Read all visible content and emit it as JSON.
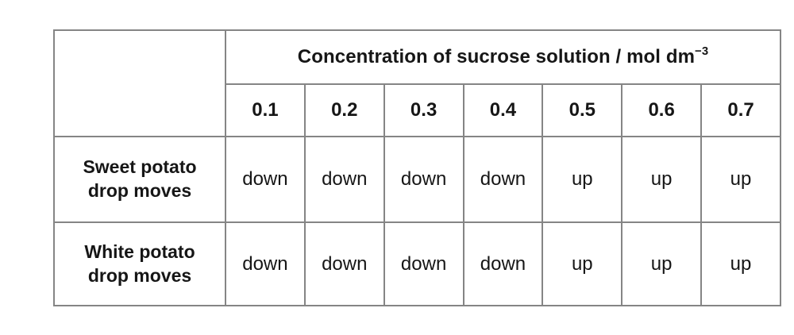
{
  "chart_data": {
    "type": "table",
    "title": "Concentration of sucrose solution / mol dm⁻³",
    "header_main": "Concentration of sucrose solution / mol dm",
    "header_sup": "−3",
    "columns": [
      "0.1",
      "0.2",
      "0.3",
      "0.4",
      "0.5",
      "0.6",
      "0.7"
    ],
    "rows": [
      {
        "label": "Sweet potato drop moves",
        "label_display": "Sweet potato\ndrop moves",
        "values": [
          "down",
          "down",
          "down",
          "down",
          "up",
          "up",
          "up"
        ]
      },
      {
        "label": "White potato drop moves",
        "label_display": "White potato\ndrop moves",
        "values": [
          "down",
          "down",
          "down",
          "down",
          "up",
          "up",
          "up"
        ]
      }
    ],
    "layout_hints": {
      "grid": "on",
      "first_column": "row labels",
      "header_spans_data_columns": true
    }
  },
  "colors": {
    "border": "#858585",
    "text": "#161616",
    "background": "#ffffff"
  }
}
